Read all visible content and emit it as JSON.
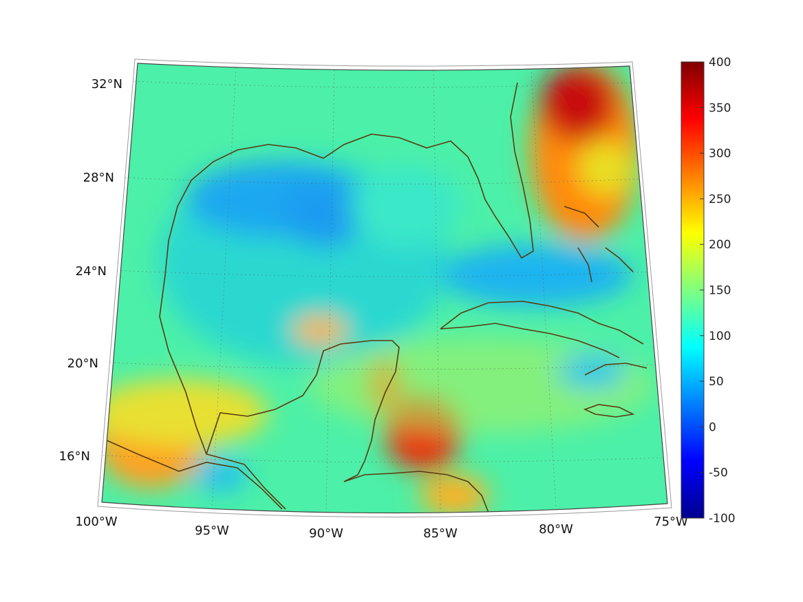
{
  "map": {
    "projection": "conic",
    "lon_range": [
      -100,
      -75
    ],
    "lat_range": [
      14,
      33
    ],
    "grid": true,
    "coastline_color": "#5a3a10",
    "field_description": "colored scalar field over Gulf of Mexico and Caribbean"
  },
  "axes": {
    "lat_labels": [
      "32°N",
      "28°N",
      "24°N",
      "20°N",
      "16°N"
    ],
    "lon_labels": [
      "100°W",
      "95°W",
      "90°W",
      "85°W",
      "80°W",
      "75°W"
    ]
  },
  "colorbar": {
    "colormap": "jet",
    "min": -100,
    "max": 400,
    "tick_labels": [
      "400",
      "350",
      "300",
      "250",
      "200",
      "150",
      "100",
      "50",
      "0",
      "-50",
      "-100"
    ]
  }
}
